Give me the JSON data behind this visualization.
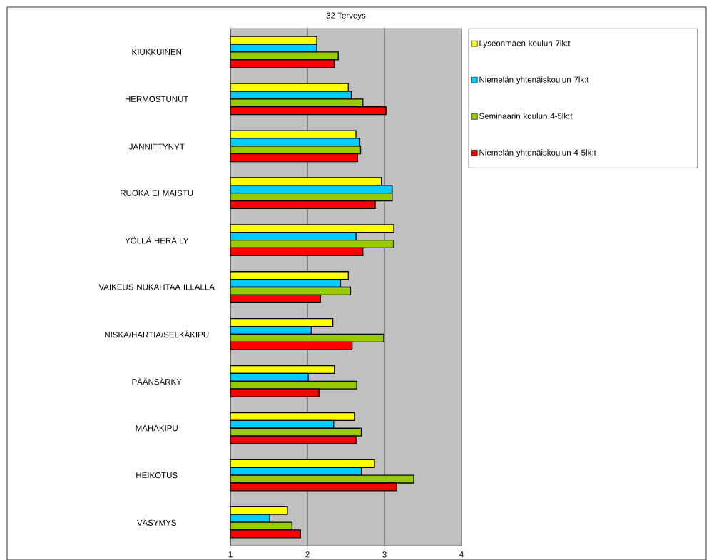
{
  "chart_data": {
    "type": "bar",
    "orientation": "horizontal",
    "title": "32 Terveys",
    "categories": [
      "KIUKKUINEN",
      "HERMOSTUNUT",
      "JÄNNITTYNYT",
      "RUOKA EI MAISTU",
      "YÖLLÄ HERÄILY",
      "VAIKEUS NUKAHTAA ILLALLA",
      "NISKA/HARTIA/SELKÄKIPU",
      "PÄÄNSÄRKY",
      "MAHAKIPU",
      "HEIKOTUS",
      "VÄSYMYS"
    ],
    "series": [
      {
        "name": "Lyseonmäen koulun 7lk:t",
        "color": "#ffff00",
        "values": [
          2.12,
          2.53,
          2.63,
          2.96,
          3.12,
          2.53,
          2.33,
          2.35,
          2.61,
          2.87,
          1.74
        ]
      },
      {
        "name": "Niemelän yhtenäiskoulun 7lk:t",
        "color": "#00ccff",
        "values": [
          2.12,
          2.57,
          2.68,
          3.1,
          2.63,
          2.43,
          2.05,
          2.01,
          2.34,
          2.7,
          1.51
        ]
      },
      {
        "name": "Seminaarin koulun 4-5lk:t",
        "color": "#99cc00",
        "values": [
          2.4,
          2.72,
          2.69,
          3.1,
          3.12,
          2.56,
          2.99,
          2.64,
          2.7,
          3.38,
          1.8
        ]
      },
      {
        "name": "Niemelän yhtenäiskoulun 4-5lk:t",
        "color": "#ff0000",
        "values": [
          2.35,
          3.02,
          2.65,
          2.88,
          2.72,
          2.17,
          2.58,
          2.15,
          2.63,
          3.16,
          1.91
        ]
      }
    ],
    "xlim": [
      1,
      4
    ],
    "xticks": [
      1,
      2,
      3,
      4
    ],
    "grid": "x",
    "legend": "right"
  }
}
